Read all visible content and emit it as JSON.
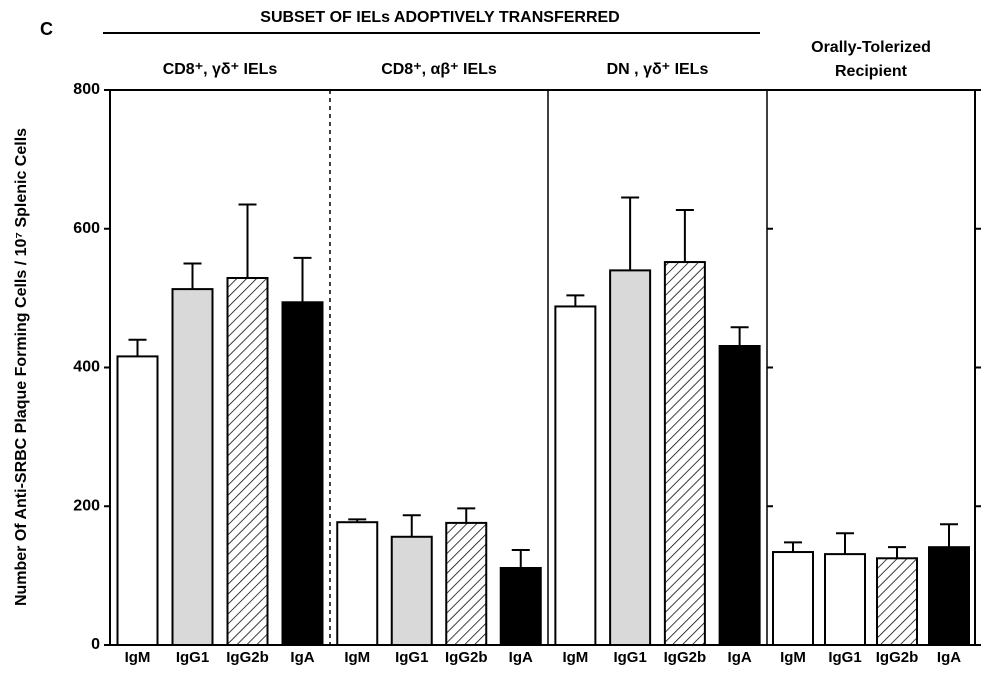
{
  "chart_data": {
    "type": "bar",
    "panel_label": "C",
    "title": "SUBSET OF IELs ADOPTIVELY TRANSFERRED",
    "y_label": "Number Of Anti-SRBC Plaque Forming Cells / 10⁷ Splenic Cells",
    "ylim": [
      0,
      800
    ],
    "yticks": [
      0,
      200,
      400,
      600,
      800
    ],
    "groups": [
      {
        "name": "CD8⁺, γδ⁺ IELs",
        "categories": [
          "IgM",
          "IgG1",
          "IgG2b",
          "IgA"
        ],
        "values": [
          416,
          513,
          529,
          494
        ],
        "errors": [
          24,
          37,
          106,
          64
        ],
        "fills": [
          "#ffffff",
          "#d9d9d9",
          "hatch",
          "#000000"
        ]
      },
      {
        "name": "CD8⁺, αβ⁺ IELs",
        "categories": [
          "IgM",
          "IgG1",
          "IgG2b",
          "IgA"
        ],
        "values": [
          177,
          156,
          176,
          111
        ],
        "errors": [
          4,
          31,
          21,
          26
        ],
        "fills": [
          "#ffffff",
          "#d9d9d9",
          "hatch",
          "#000000"
        ]
      },
      {
        "name": "DN , γδ⁺ IELs",
        "categories": [
          "IgM",
          "IgG1",
          "IgG2b",
          "IgA"
        ],
        "values": [
          488,
          540,
          552,
          431
        ],
        "errors": [
          16,
          105,
          75,
          27
        ],
        "fills": [
          "#ffffff",
          "#d9d9d9",
          "hatch",
          "#000000"
        ]
      },
      {
        "name": [
          "Orally-Tolerized",
          "Recipient"
        ],
        "categories": [
          "IgM",
          "IgG1",
          "IgG2b",
          "IgA"
        ],
        "values": [
          134,
          131,
          125,
          141
        ],
        "errors": [
          14,
          30,
          16,
          33
        ],
        "fills": [
          "#ffffff",
          "#ffffff",
          "hatch",
          "#000000"
        ]
      }
    ]
  }
}
